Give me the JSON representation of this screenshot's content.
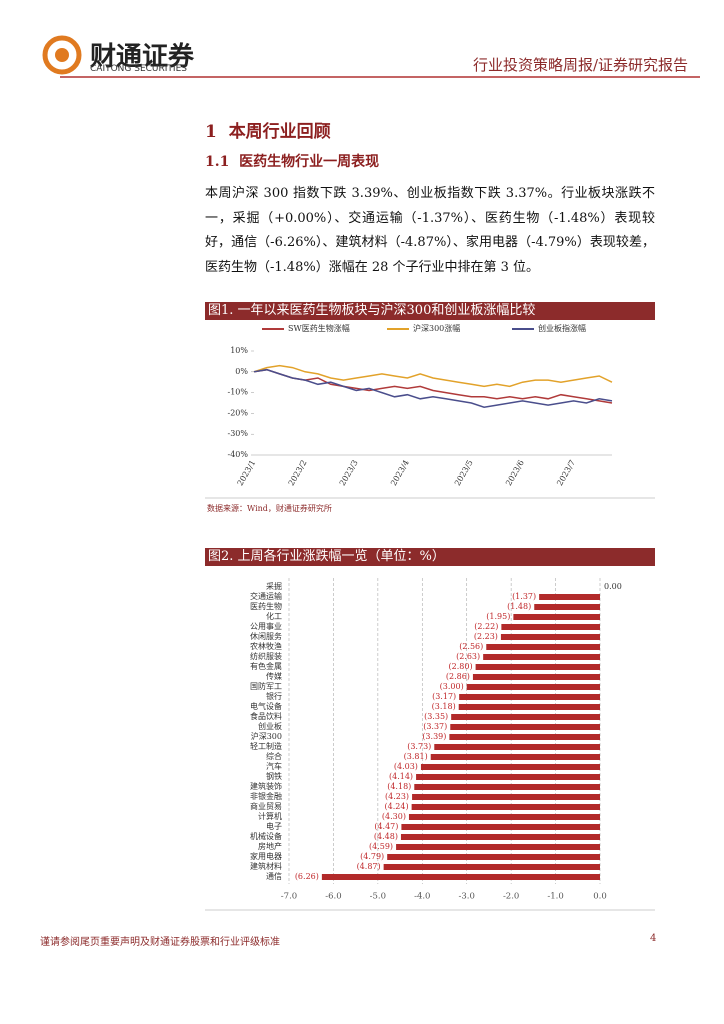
{
  "header": {
    "logo_cn": "财通证券",
    "logo_en": "CAITONG SECURITIES",
    "report_type": "行业投资策略周报/证券研究报告"
  },
  "section": {
    "heading_num": "1",
    "heading": "本周行业回顾",
    "subheading_num": "1.1",
    "subheading": "医药生物行业一周表现",
    "paragraph": "本周沪深 300 指数下跌 3.39%、创业板指数下跌 3.37%。行业板块涨跌不一，采掘（+0.00%）、交通运输（-1.37%）、医药生物（-1.48%）表现较好，通信（-6.26%）、建筑材料（-4.87%）、家用电器（-4.79%）表现较差，医药生物（-1.48%）涨幅在 28 个子行业中排在第 3 位。"
  },
  "chart_data": [
    {
      "type": "line",
      "title": "图1. 一年以来医药生物板块与沪深300和创业板涨幅比较",
      "source": "数据来源：Wind，财通证券研究所",
      "categories": [
        "2023/1",
        null,
        null,
        null,
        "2023/2",
        null,
        null,
        null,
        "2023/3",
        null,
        null,
        null,
        "2023/4",
        null,
        null,
        null,
        null,
        "2023/5",
        null,
        null,
        null,
        "2023/6",
        null,
        null,
        null,
        "2023/7",
        null,
        null,
        null
      ],
      "ylim": [
        -40,
        10
      ],
      "yticks": [
        {
          "value": 10,
          "label": "10%"
        },
        {
          "value": 0,
          "label": "0%"
        },
        {
          "value": -10,
          "label": "-10%"
        },
        {
          "value": -20,
          "label": "-20%"
        },
        {
          "value": -30,
          "label": "-30%"
        },
        {
          "value": -40,
          "label": "-40%"
        }
      ],
      "series": [
        {
          "name": "SW医药生物涨幅",
          "color": "#b03a3a",
          "values": [
            0,
            1,
            -1,
            -3,
            -4,
            -3,
            -6,
            -7,
            -8,
            -9,
            -8,
            -7,
            -8,
            -7,
            -9,
            -10,
            -11,
            -12,
            -12,
            -13,
            -12,
            -13,
            -12,
            -13,
            -11,
            -12,
            -13,
            -14,
            -15
          ]
        },
        {
          "name": "沪深300涨幅",
          "color": "#e2a22a",
          "values": [
            0,
            2,
            3,
            2,
            0,
            -1,
            -3,
            -4,
            -3,
            -2,
            -1,
            -2,
            -3,
            -1,
            -3,
            -4,
            -5,
            -6,
            -7,
            -6,
            -7,
            -5,
            -4,
            -4,
            -5,
            -4,
            -3,
            -2,
            -5
          ]
        },
        {
          "name": "创业板指涨幅",
          "color": "#4a4e8c",
          "values": [
            0,
            1,
            -1,
            -3,
            -4,
            -6,
            -5,
            -7,
            -9,
            -8,
            -10,
            -12,
            -11,
            -13,
            -12,
            -13,
            -14,
            -15,
            -17,
            -16,
            -15,
            -14,
            -15,
            -16,
            -15,
            -14,
            -15,
            -13,
            -14
          ]
        }
      ]
    },
    {
      "type": "hbar",
      "title": "图2. 上周各行业涨跌幅一览（单位：%）",
      "color": "#b22a2a",
      "categories": [
        "采掘",
        "交通运输",
        "医药生物",
        "化工",
        "公用事业",
        "休闲服务",
        "农林牧渔",
        "纺织服装",
        "有色金属",
        "传媒",
        "国防军工",
        "银行",
        "电气设备",
        "食品饮料",
        "创业板",
        "沪深300",
        "轻工制造",
        "综合",
        "汽车",
        "钢铁",
        "建筑装饰",
        "非银金融",
        "商业贸易",
        "计算机",
        "电子",
        "机械设备",
        "房地产",
        "家用电器",
        "建筑材料",
        "通信"
      ],
      "values": [
        0,
        -1.37,
        -1.48,
        -1.95,
        -2.22,
        -2.23,
        -2.56,
        -2.63,
        -2.8,
        -2.86,
        -3.0,
        -3.17,
        -3.18,
        -3.35,
        -3.37,
        -3.39,
        -3.73,
        -3.81,
        -4.03,
        -4.14,
        -4.18,
        -4.23,
        -4.24,
        -4.3,
        -4.47,
        -4.48,
        -4.59,
        -4.79,
        -4.87,
        -6.26
      ],
      "value_labels": [
        "0.00",
        "(1.37)",
        "(1.48)",
        "(1.95)",
        "(2.22)",
        "(2.23)",
        "(2.56)",
        "(2.63)",
        "(2.80)",
        "(2.86)",
        "(3.00)",
        "(3.17)",
        "(3.18)",
        "(3.35)",
        "(3.37)",
        "(3.39)",
        "(3.73)",
        "(3.81)",
        "(4.03)",
        "(4.14)",
        "(4.18)",
        "(4.23)",
        "(4.24)",
        "(4.30)",
        "(4.47)",
        "(4.48)",
        "(4.59)",
        "(4.79)",
        "(4.87)",
        "(6.26)"
      ],
      "xlim": [
        -7,
        0
      ],
      "xticks": [
        {
          "value": -7,
          "label": "-7.0"
        },
        {
          "value": -6,
          "label": "-6.0"
        },
        {
          "value": -5,
          "label": "-5.0"
        },
        {
          "value": -4,
          "label": "-4.0"
        },
        {
          "value": -3,
          "label": "-3.0"
        },
        {
          "value": -2,
          "label": "-2.0"
        },
        {
          "value": -1,
          "label": "-1.0"
        },
        {
          "value": 0,
          "label": "0.0"
        }
      ],
      "grid": true
    }
  ],
  "footer": {
    "disclaimer": "谨请参阅尾页重要声明及财通证券股票和行业评级标准",
    "page": "4"
  }
}
